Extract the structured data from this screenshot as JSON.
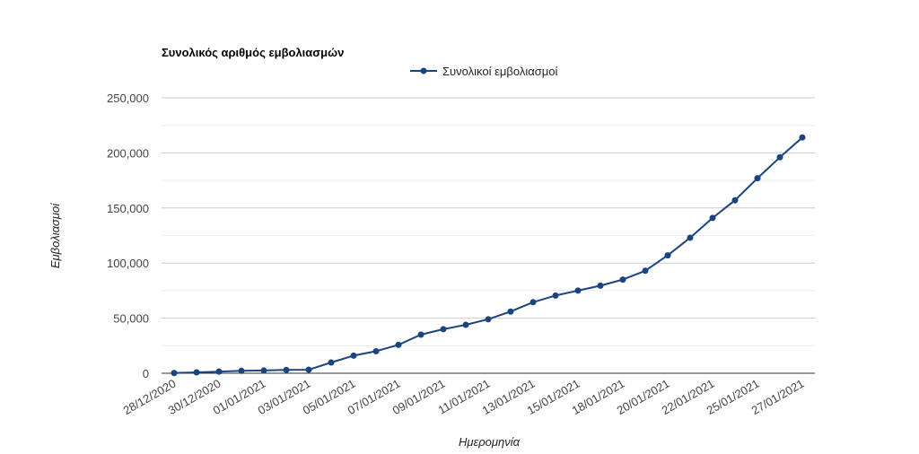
{
  "chart_data": {
    "type": "line",
    "title": "Συνολικός αριθμός εμβολιασμών",
    "xlabel": "Ημερομηνία",
    "ylabel": "Εμβολιασμοί",
    "ylim": [
      0,
      250000
    ],
    "yticks": [
      "0",
      "50,000",
      "100,000",
      "150,000",
      "200,000",
      "250,000"
    ],
    "ytick_values": [
      0,
      50000,
      100000,
      150000,
      200000,
      250000
    ],
    "grid": true,
    "legend_position": "top",
    "color": "#1a4480",
    "x": [
      "28/12/2020",
      "29/12/2020",
      "30/12/2020",
      "31/12/2020",
      "01/01/2021",
      "02/01/2021",
      "03/01/2021",
      "04/01/2021",
      "05/01/2021",
      "06/01/2021",
      "07/01/2021",
      "08/01/2021",
      "09/01/2021",
      "10/01/2021",
      "11/01/2021",
      "12/01/2021",
      "13/01/2021",
      "14/01/2021",
      "15/01/2021",
      "16/01/2021",
      "18/01/2021",
      "19/01/2021",
      "20/01/2021",
      "21/01/2021",
      "22/01/2021",
      "23/01/2021",
      "25/01/2021",
      "26/01/2021",
      "27/01/2021"
    ],
    "xtick_labels": [
      "28/12/2020",
      "30/12/2020",
      "01/01/2021",
      "03/01/2021",
      "05/01/2021",
      "07/01/2021",
      "09/01/2021",
      "11/01/2021",
      "13/01/2021",
      "15/01/2021",
      "18/01/2021",
      "20/01/2021",
      "22/01/2021",
      "25/01/2021",
      "27/01/2021"
    ],
    "series": [
      {
        "name": "Συνολικοί εμβολιασμοί",
        "values": [
          200,
          800,
          1500,
          2200,
          2500,
          3000,
          3200,
          9800,
          16000,
          20000,
          25800,
          35000,
          40000,
          44000,
          49000,
          56000,
          64500,
          70500,
          75000,
          79500,
          85000,
          93000,
          107000,
          123000,
          141000,
          157000,
          177000,
          196000,
          214000
        ]
      }
    ]
  }
}
